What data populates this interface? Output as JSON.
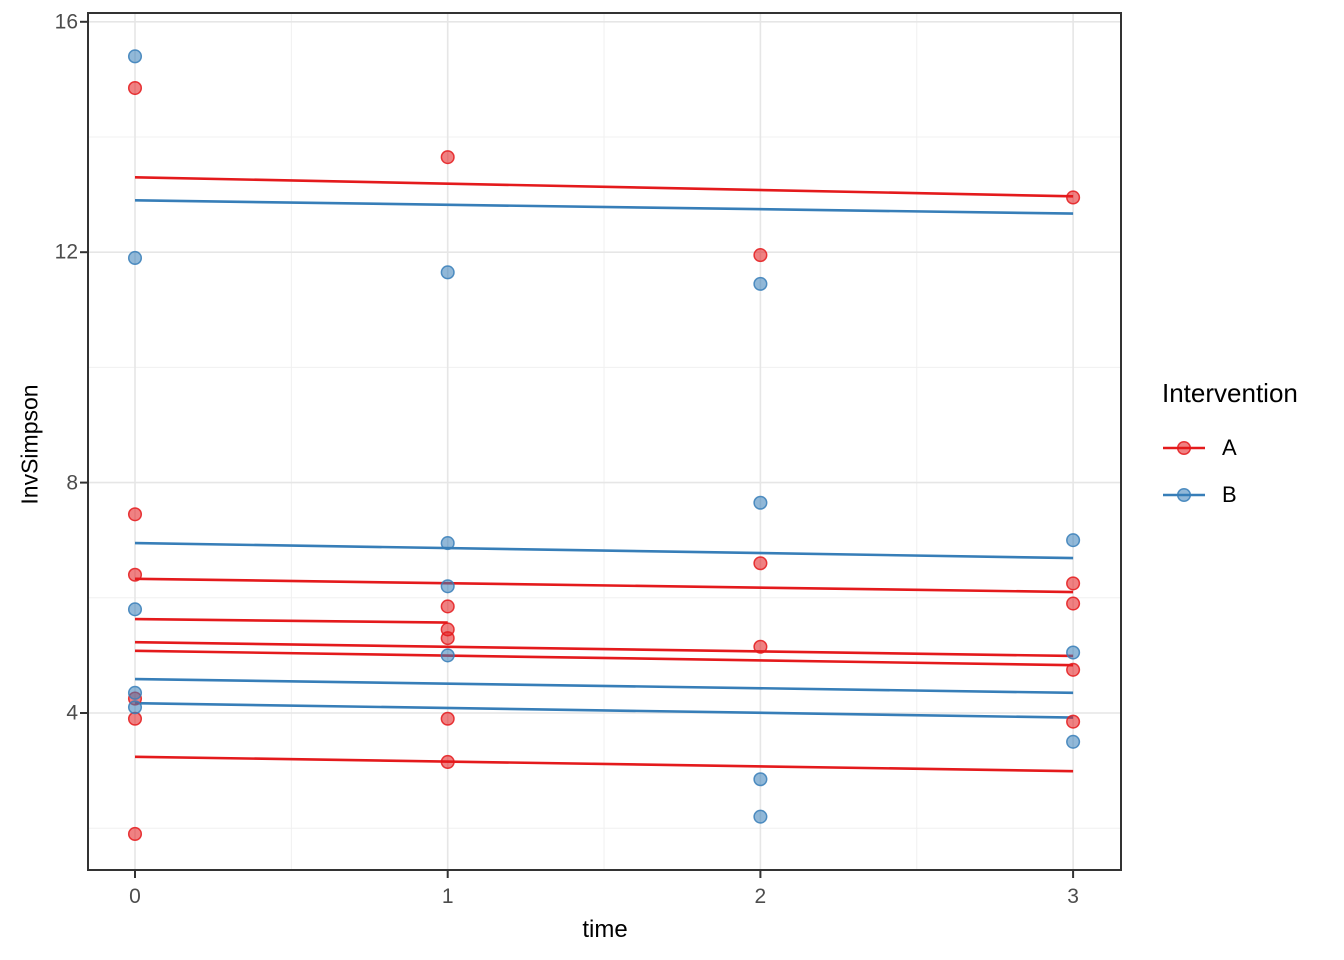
{
  "chart_data": {
    "type": "scatter",
    "title": "",
    "xlabel": "time",
    "ylabel": "InvSimpson",
    "xlim": [
      -0.15,
      3.16
    ],
    "ylim": [
      1.27,
      16.17
    ],
    "x_ticks": [
      0,
      1,
      2,
      3
    ],
    "y_ticks": [
      4,
      8,
      12,
      16
    ],
    "x_minor_ticks": [
      0.5,
      1.5,
      2.5
    ],
    "y_minor_ticks": [
      2,
      6,
      10,
      14
    ],
    "grid": "major+minor, light gray on white, full panel border",
    "legend": {
      "title": "Intervention",
      "position": "right",
      "entries": [
        {
          "label": "A",
          "group": "A"
        },
        {
          "label": "B",
          "group": "B"
        }
      ]
    },
    "colors": {
      "A": "#E41A1C",
      "B": "#377EB8",
      "grid_major": "#E6E6E6",
      "grid_minor": "#F0F0F0",
      "axis_text": "#4D4D4D",
      "panel_border": "#333333"
    },
    "series": [
      {
        "name": "A",
        "group": "A",
        "points": [
          [
            0,
            14.85
          ],
          [
            0,
            7.45
          ],
          [
            0,
            6.4
          ],
          [
            0,
            4.25
          ],
          [
            0,
            3.9
          ],
          [
            0,
            1.9
          ],
          [
            1,
            13.65
          ],
          [
            1,
            5.85
          ],
          [
            1,
            5.45
          ],
          [
            1,
            5.3
          ],
          [
            1,
            3.9
          ],
          [
            1,
            3.15
          ],
          [
            2,
            11.95
          ],
          [
            2,
            6.6
          ],
          [
            2,
            5.15
          ],
          [
            3,
            12.95
          ],
          [
            3,
            6.25
          ],
          [
            3,
            5.9
          ],
          [
            3,
            4.75
          ],
          [
            3,
            3.85
          ]
        ]
      },
      {
        "name": "B",
        "group": "B",
        "points": [
          [
            0,
            15.4
          ],
          [
            0,
            11.9
          ],
          [
            0,
            5.8
          ],
          [
            0,
            4.35
          ],
          [
            0,
            4.1
          ],
          [
            1,
            11.65
          ],
          [
            1,
            6.95
          ],
          [
            1,
            6.2
          ],
          [
            1,
            5.0
          ],
          [
            2,
            11.45
          ],
          [
            2,
            7.65
          ],
          [
            2,
            2.85
          ],
          [
            2,
            2.2
          ],
          [
            3,
            7.0
          ],
          [
            3,
            5.05
          ],
          [
            3,
            3.5
          ]
        ]
      }
    ],
    "fit_lines": [
      {
        "group": "A",
        "x0": 0,
        "y0": 13.3,
        "x1": 3,
        "y1": 12.97
      },
      {
        "group": "A",
        "x0": 0,
        "y0": 6.33,
        "x1": 3,
        "y1": 6.1
      },
      {
        "group": "A",
        "x0": 0,
        "y0": 5.63,
        "x1": 1,
        "y1": 5.57
      },
      {
        "group": "A",
        "x0": 0,
        "y0": 5.23,
        "x1": 3,
        "y1": 4.99
      },
      {
        "group": "A",
        "x0": 0,
        "y0": 5.08,
        "x1": 3,
        "y1": 4.83
      },
      {
        "group": "A",
        "x0": 0,
        "y0": 3.24,
        "x1": 3,
        "y1": 2.99
      },
      {
        "group": "B",
        "x0": 0,
        "y0": 12.9,
        "x1": 3,
        "y1": 12.67
      },
      {
        "group": "B",
        "x0": 0,
        "y0": 6.95,
        "x1": 3,
        "y1": 6.69
      },
      {
        "group": "B",
        "x0": 0,
        "y0": 4.59,
        "x1": 3,
        "y1": 4.35
      },
      {
        "group": "B",
        "x0": 0,
        "y0": 4.17,
        "x1": 3,
        "y1": 3.92
      }
    ]
  }
}
